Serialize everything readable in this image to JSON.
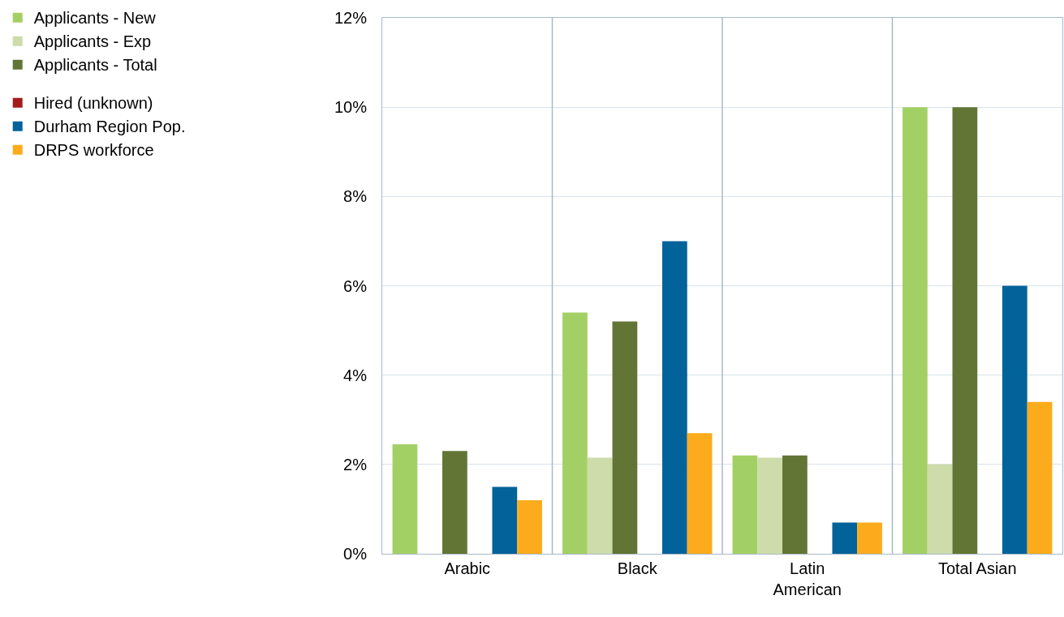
{
  "chart_data": {
    "type": "bar",
    "categories": [
      "Arabic",
      "Black",
      "Latin American",
      "Total Asian"
    ],
    "series": [
      {
        "name": "Applicants - New",
        "color": "#a3d064",
        "values": [
          2.45,
          5.4,
          2.2,
          10.0
        ]
      },
      {
        "name": "Applicants - Exp",
        "color": "#cddcaa",
        "values": [
          null,
          2.15,
          2.15,
          2.0
        ]
      },
      {
        "name": "Applicants - Total",
        "color": "#627535",
        "values": [
          2.3,
          5.2,
          2.2,
          10.0
        ]
      },
      {
        "name": "Hired (unknown)",
        "color": "#a31d1b",
        "values": [
          null,
          null,
          null,
          null
        ]
      },
      {
        "name": "Durham Region Pop.",
        "color": "#02629a",
        "values": [
          1.5,
          7.0,
          0.7,
          6.0
        ]
      },
      {
        "name": "DRPS workforce",
        "color": "#fbab1c",
        "values": [
          1.2,
          2.7,
          0.7,
          3.4
        ]
      }
    ],
    "ylim": [
      0,
      12
    ],
    "yticks": [
      {
        "value": 0,
        "label": "0%"
      },
      {
        "value": 2,
        "label": "2%"
      },
      {
        "value": 4,
        "label": "4%"
      },
      {
        "value": 6,
        "label": "6%"
      },
      {
        "value": 8,
        "label": "8%"
      },
      {
        "value": 10,
        "label": "10%"
      },
      {
        "value": 12,
        "label": "12%"
      }
    ],
    "grid": true,
    "legend": "left"
  }
}
